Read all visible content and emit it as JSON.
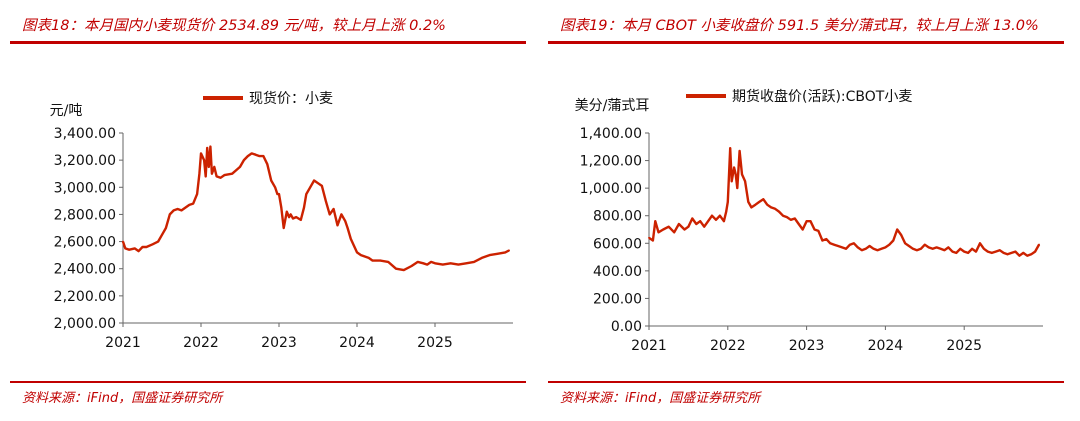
{
  "colors": {
    "accent": "#c00000",
    "series": "#cc2200"
  },
  "left": {
    "title": "图表18：本月国内小麦现货价 2534.89 元/吨，较上月上涨 0.2%",
    "source": "资料来源：iFind，国盛证券研究所"
  },
  "right": {
    "title": "图表19：本月 CBOT 小麦收盘价 591.5 美分/蒲式耳，较上月上涨 13.0%",
    "source": "资料来源：iFind，国盛证券研究所"
  },
  "chart_data": [
    {
      "type": "line",
      "title": "",
      "ylabel": "元/吨",
      "legend": "现货价：小麦",
      "legend_position": "top",
      "grid": false,
      "ylim": [
        2000,
        3400
      ],
      "yticks": [
        2000,
        2200,
        2400,
        2600,
        2800,
        3000,
        3200,
        3400
      ],
      "ytick_labels": [
        "2,000.00",
        "2,200.00",
        "2,400.00",
        "2,600.00",
        "2,800.00",
        "3,000.00",
        "3,200.00",
        "3,400.00"
      ],
      "xlim": [
        2021.0,
        2026.0
      ],
      "xticks": [
        2021,
        2022,
        2023,
        2024,
        2025
      ],
      "xtick_labels": [
        "2021",
        "2022",
        "2023",
        "2024",
        "2025"
      ],
      "series": [
        {
          "name": "现货价：小麦",
          "x": [
            2021.0,
            2021.03,
            2021.08,
            2021.15,
            2021.2,
            2021.25,
            2021.3,
            2021.38,
            2021.45,
            2021.5,
            2021.55,
            2021.6,
            2021.65,
            2021.7,
            2021.75,
            2021.8,
            2021.85,
            2021.9,
            2021.95,
            2021.98,
            2022.0,
            2022.04,
            2022.06,
            2022.08,
            2022.1,
            2022.12,
            2022.14,
            2022.17,
            2022.2,
            2022.25,
            2022.3,
            2022.4,
            2022.5,
            2022.55,
            2022.6,
            2022.65,
            2022.7,
            2022.75,
            2022.8,
            2022.85,
            2022.9,
            2022.95,
            2022.98,
            2023.0,
            2023.03,
            2023.06,
            2023.1,
            2023.13,
            2023.15,
            2023.18,
            2023.22,
            2023.28,
            2023.32,
            2023.35,
            2023.4,
            2023.45,
            2023.5,
            2023.55,
            2023.6,
            2023.65,
            2023.7,
            2023.75,
            2023.8,
            2023.85,
            2023.88,
            2023.92,
            2023.96,
            2024.0,
            2024.05,
            2024.1,
            2024.15,
            2024.2,
            2024.3,
            2024.4,
            2024.5,
            2024.6,
            2024.7,
            2024.78,
            2024.85,
            2024.9,
            2024.95,
            2025.0,
            2025.1,
            2025.2,
            2025.3,
            2025.4,
            2025.5,
            2025.6,
            2025.7,
            2025.8,
            2025.9,
            2025.95
          ],
          "values": [
            2600,
            2550,
            2540,
            2550,
            2530,
            2560,
            2560,
            2580,
            2600,
            2650,
            2700,
            2800,
            2830,
            2840,
            2830,
            2850,
            2870,
            2880,
            2950,
            3100,
            3250,
            3200,
            3080,
            3290,
            3150,
            3300,
            3100,
            3150,
            3080,
            3070,
            3090,
            3100,
            3150,
            3200,
            3230,
            3250,
            3240,
            3230,
            3230,
            3170,
            3050,
            3000,
            2950,
            2950,
            2850,
            2700,
            2820,
            2780,
            2800,
            2770,
            2780,
            2760,
            2850,
            2950,
            3000,
            3050,
            3030,
            3010,
            2900,
            2800,
            2840,
            2720,
            2800,
            2750,
            2700,
            2620,
            2570,
            2520,
            2500,
            2490,
            2480,
            2460,
            2460,
            2450,
            2400,
            2390,
            2420,
            2450,
            2440,
            2430,
            2450,
            2440,
            2430,
            2440,
            2430,
            2440,
            2450,
            2480,
            2500,
            2510,
            2520,
            2535
          ]
        }
      ]
    },
    {
      "type": "line",
      "title": "",
      "ylabel": "美分/蒲式耳",
      "legend": "期货收盘价(活跃):CBOT小麦",
      "legend_position": "top",
      "grid": false,
      "ylim": [
        0,
        1400
      ],
      "yticks": [
        0,
        200,
        400,
        600,
        800,
        1000,
        1200,
        1400
      ],
      "ytick_labels": [
        "0.00",
        "200.00",
        "400.00",
        "600.00",
        "800.00",
        "1,000.00",
        "1,200.00",
        "1,400.00"
      ],
      "xlim": [
        2021.0,
        2026.0
      ],
      "xticks": [
        2021,
        2022,
        2023,
        2024,
        2025
      ],
      "xtick_labels": [
        "2021",
        "2022",
        "2023",
        "2024",
        "2025"
      ],
      "series": [
        {
          "name": "期货收盘价(活跃):CBOT小麦",
          "x": [
            2021.0,
            2021.05,
            2021.08,
            2021.12,
            2021.18,
            2021.25,
            2021.32,
            2021.38,
            2021.45,
            2021.5,
            2021.55,
            2021.6,
            2021.65,
            2021.7,
            2021.75,
            2021.8,
            2021.85,
            2021.9,
            2021.95,
            2021.98,
            2022.0,
            2022.03,
            2022.05,
            2022.08,
            2022.1,
            2022.12,
            2022.15,
            2022.18,
            2022.22,
            2022.26,
            2022.3,
            2022.35,
            2022.4,
            2022.45,
            2022.5,
            2022.55,
            2022.6,
            2022.65,
            2022.7,
            2022.75,
            2022.8,
            2022.85,
            2022.9,
            2022.95,
            2023.0,
            2023.05,
            2023.1,
            2023.15,
            2023.2,
            2023.25,
            2023.3,
            2023.35,
            2023.4,
            2023.45,
            2023.5,
            2023.55,
            2023.6,
            2023.65,
            2023.7,
            2023.75,
            2023.8,
            2023.85,
            2023.9,
            2023.95,
            2024.0,
            2024.05,
            2024.1,
            2024.15,
            2024.2,
            2024.25,
            2024.3,
            2024.35,
            2024.4,
            2024.45,
            2024.5,
            2024.55,
            2024.6,
            2024.65,
            2024.7,
            2024.75,
            2024.8,
            2024.85,
            2024.9,
            2024.95,
            2025.0,
            2025.05,
            2025.1,
            2025.15,
            2025.2,
            2025.25,
            2025.3,
            2025.35,
            2025.4,
            2025.45,
            2025.5,
            2025.55,
            2025.6,
            2025.65,
            2025.7,
            2025.75,
            2025.8,
            2025.85,
            2025.9,
            2025.95
          ],
          "values": [
            640,
            620,
            760,
            680,
            700,
            720,
            680,
            740,
            700,
            720,
            780,
            740,
            760,
            720,
            760,
            800,
            770,
            800,
            760,
            830,
            900,
            1290,
            1050,
            1150,
            1100,
            1000,
            1270,
            1100,
            1050,
            900,
            860,
            880,
            900,
            920,
            880,
            860,
            850,
            830,
            800,
            790,
            770,
            780,
            740,
            700,
            760,
            760,
            700,
            690,
            620,
            630,
            600,
            590,
            580,
            570,
            560,
            590,
            600,
            570,
            550,
            560,
            580,
            560,
            550,
            560,
            570,
            590,
            620,
            700,
            660,
            600,
            580,
            560,
            550,
            560,
            590,
            570,
            560,
            570,
            560,
            550,
            570,
            540,
            530,
            560,
            540,
            530,
            560,
            540,
            600,
            560,
            540,
            530,
            540,
            550,
            530,
            520,
            530,
            540,
            510,
            530,
            510,
            520,
            540,
            591
          ]
        }
      ]
    }
  ]
}
